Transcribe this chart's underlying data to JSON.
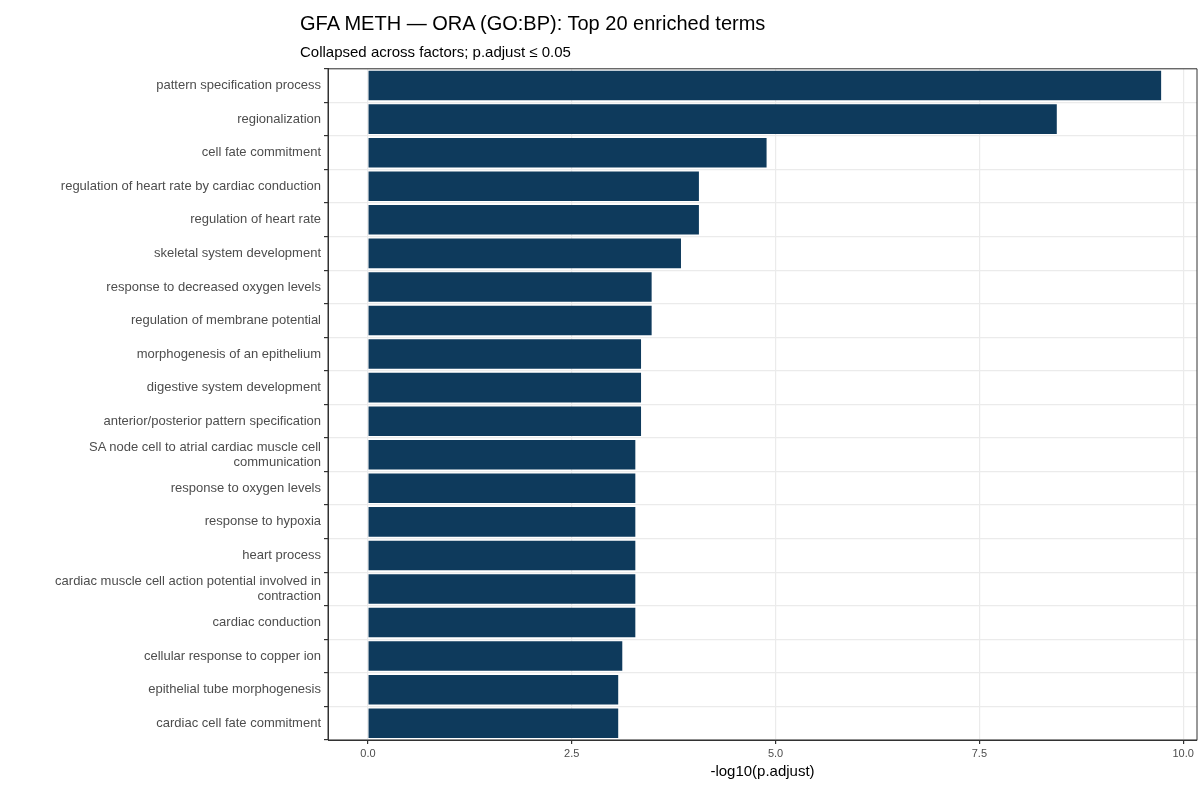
{
  "chart_data": {
    "type": "bar",
    "orientation": "horizontal",
    "title": "GFA METH — ORA (GO:BP): Top 20 enriched terms",
    "subtitle": "Collapsed across factors; p.adjust ≤ 0.05",
    "xlabel": "-log10(p.adjust)",
    "categories": [
      "pattern specification process",
      "regionalization",
      "cell fate commitment",
      "regulation of heart rate by cardiac conduction",
      "regulation of heart rate",
      "skeletal system development",
      "response to decreased oxygen levels",
      "regulation of membrane potential",
      "morphogenesis of an epithelium",
      "digestive system development",
      "anterior/posterior pattern specification",
      "SA node cell to atrial cardiac muscle cell communication",
      "response to oxygen levels",
      "response to hypoxia",
      "heart process",
      "cardiac muscle cell action potential involved in contraction",
      "cardiac conduction",
      "cellular response to copper ion",
      "epithelial tube morphogenesis",
      "cardiac cell fate commitment"
    ],
    "values": [
      9.73,
      8.45,
      4.89,
      4.06,
      4.06,
      3.84,
      3.48,
      3.48,
      3.35,
      3.35,
      3.35,
      3.28,
      3.28,
      3.28,
      3.28,
      3.28,
      3.28,
      3.12,
      3.07,
      3.07
    ],
    "color": "#0e3a5c",
    "xlim": [
      -0.49,
      10.17
    ],
    "xticks": [
      {
        "value": 0,
        "label": "0.0"
      },
      {
        "value": 2.5,
        "label": "2.5"
      },
      {
        "value": 5,
        "label": "5.0"
      },
      {
        "value": 7.5,
        "label": "7.5"
      },
      {
        "value": 10,
        "label": "10.0"
      }
    ],
    "grid": true
  }
}
